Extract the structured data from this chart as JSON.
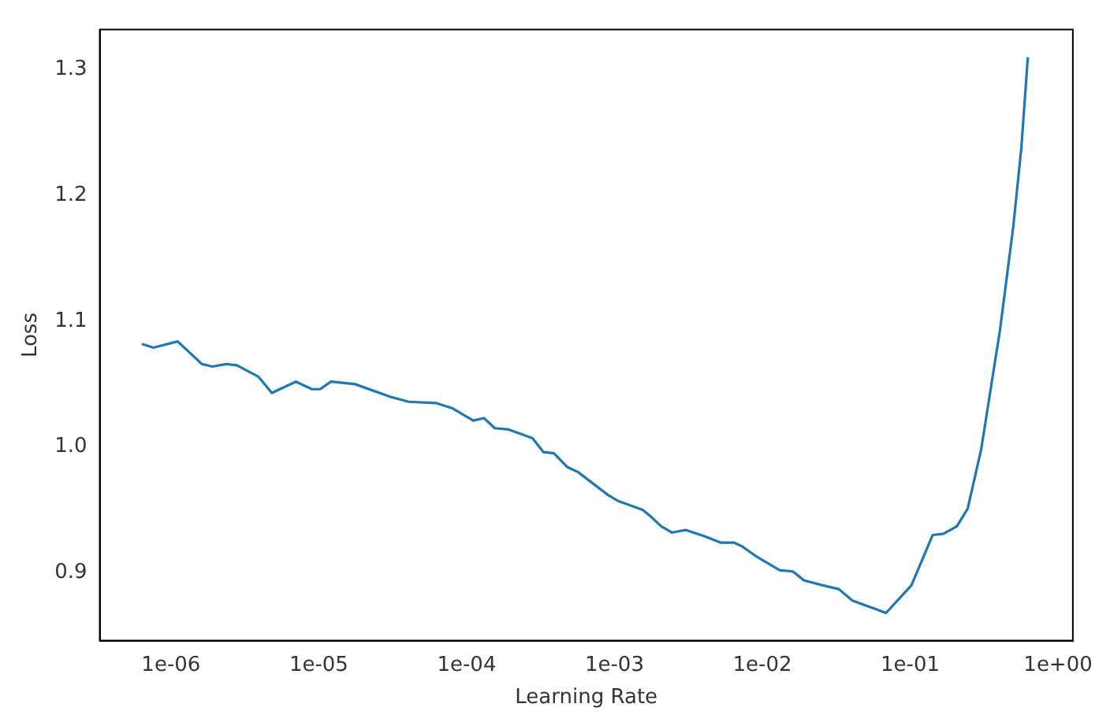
{
  "chart_data": {
    "type": "line",
    "xlabel": "Learning Rate",
    "ylabel": "Loss",
    "log": "x",
    "grid": false,
    "marker": "none",
    "line_style": "solid",
    "x": [
      6.35e-07,
      7.62e-07,
      1.11e-06,
      1.62e-06,
      1.91e-06,
      2.36e-06,
      2.79e-06,
      3.9e-06,
      4.81e-06,
      7e-06,
      9e-06,
      1.02e-05,
      1.21e-05,
      1.76e-05,
      3.03e-05,
      4.06e-05,
      6.18e-05,
      7.94e-05,
      0.000111,
      0.000131,
      0.000155,
      0.000191,
      0.000279,
      0.00033,
      0.000389,
      0.000481,
      0.000568,
      0.0009,
      0.00106,
      0.00155,
      0.00175,
      0.00207,
      0.00245,
      0.00303,
      0.00406,
      0.00522,
      0.00643,
      0.00729,
      0.00938,
      0.0131,
      0.0161,
      0.0191,
      0.0256,
      0.0329,
      0.0405,
      0.05,
      0.059,
      0.0686,
      0.102,
      0.142,
      0.168,
      0.207,
      0.245,
      0.302,
      0.405,
      0.499,
      0.565,
      0.625
    ],
    "series": [
      {
        "color": "#1f77b4",
        "values": [
          1.082,
          1.079,
          1.084,
          1.066,
          1.064,
          1.066,
          1.065,
          1.056,
          1.043,
          1.052,
          1.046,
          1.046,
          1.052,
          1.05,
          1.04,
          1.036,
          1.035,
          1.031,
          1.021,
          1.023,
          1.015,
          1.014,
          1.007,
          0.996,
          0.995,
          0.984,
          0.98,
          0.962,
          0.957,
          0.95,
          0.945,
          0.937,
          0.932,
          0.934,
          0.929,
          0.924,
          0.924,
          0.921,
          0.912,
          0.902,
          0.901,
          0.894,
          0.89,
          0.887,
          0.878,
          0.874,
          0.871,
          0.868,
          0.89,
          0.93,
          0.931,
          0.937,
          0.951,
          0.998,
          1.093,
          1.176,
          1.238,
          1.31
        ]
      }
    ],
    "xlim": [
      3.3e-07,
      1.26
    ],
    "xticks": [
      {
        "value": 1e-06,
        "label": "1e-06"
      },
      {
        "value": 1e-05,
        "label": "1e-05"
      },
      {
        "value": 0.0001,
        "label": "1e-04"
      },
      {
        "value": 0.001,
        "label": "1e-03"
      },
      {
        "value": 0.01,
        "label": "1e-02"
      },
      {
        "value": 0.1,
        "label": "1e-01"
      },
      {
        "value": 1,
        "label": "1e+00"
      }
    ],
    "ylim": [
      0.846,
      1.332
    ],
    "yticks": [
      {
        "value": 0.9,
        "label": "0.9"
      },
      {
        "value": 1.0,
        "label": "1.0"
      },
      {
        "value": 1.1,
        "label": "1.1"
      },
      {
        "value": 1.2,
        "label": "1.2"
      },
      {
        "value": 1.3,
        "label": "1.3"
      }
    ],
    "legend": false
  }
}
